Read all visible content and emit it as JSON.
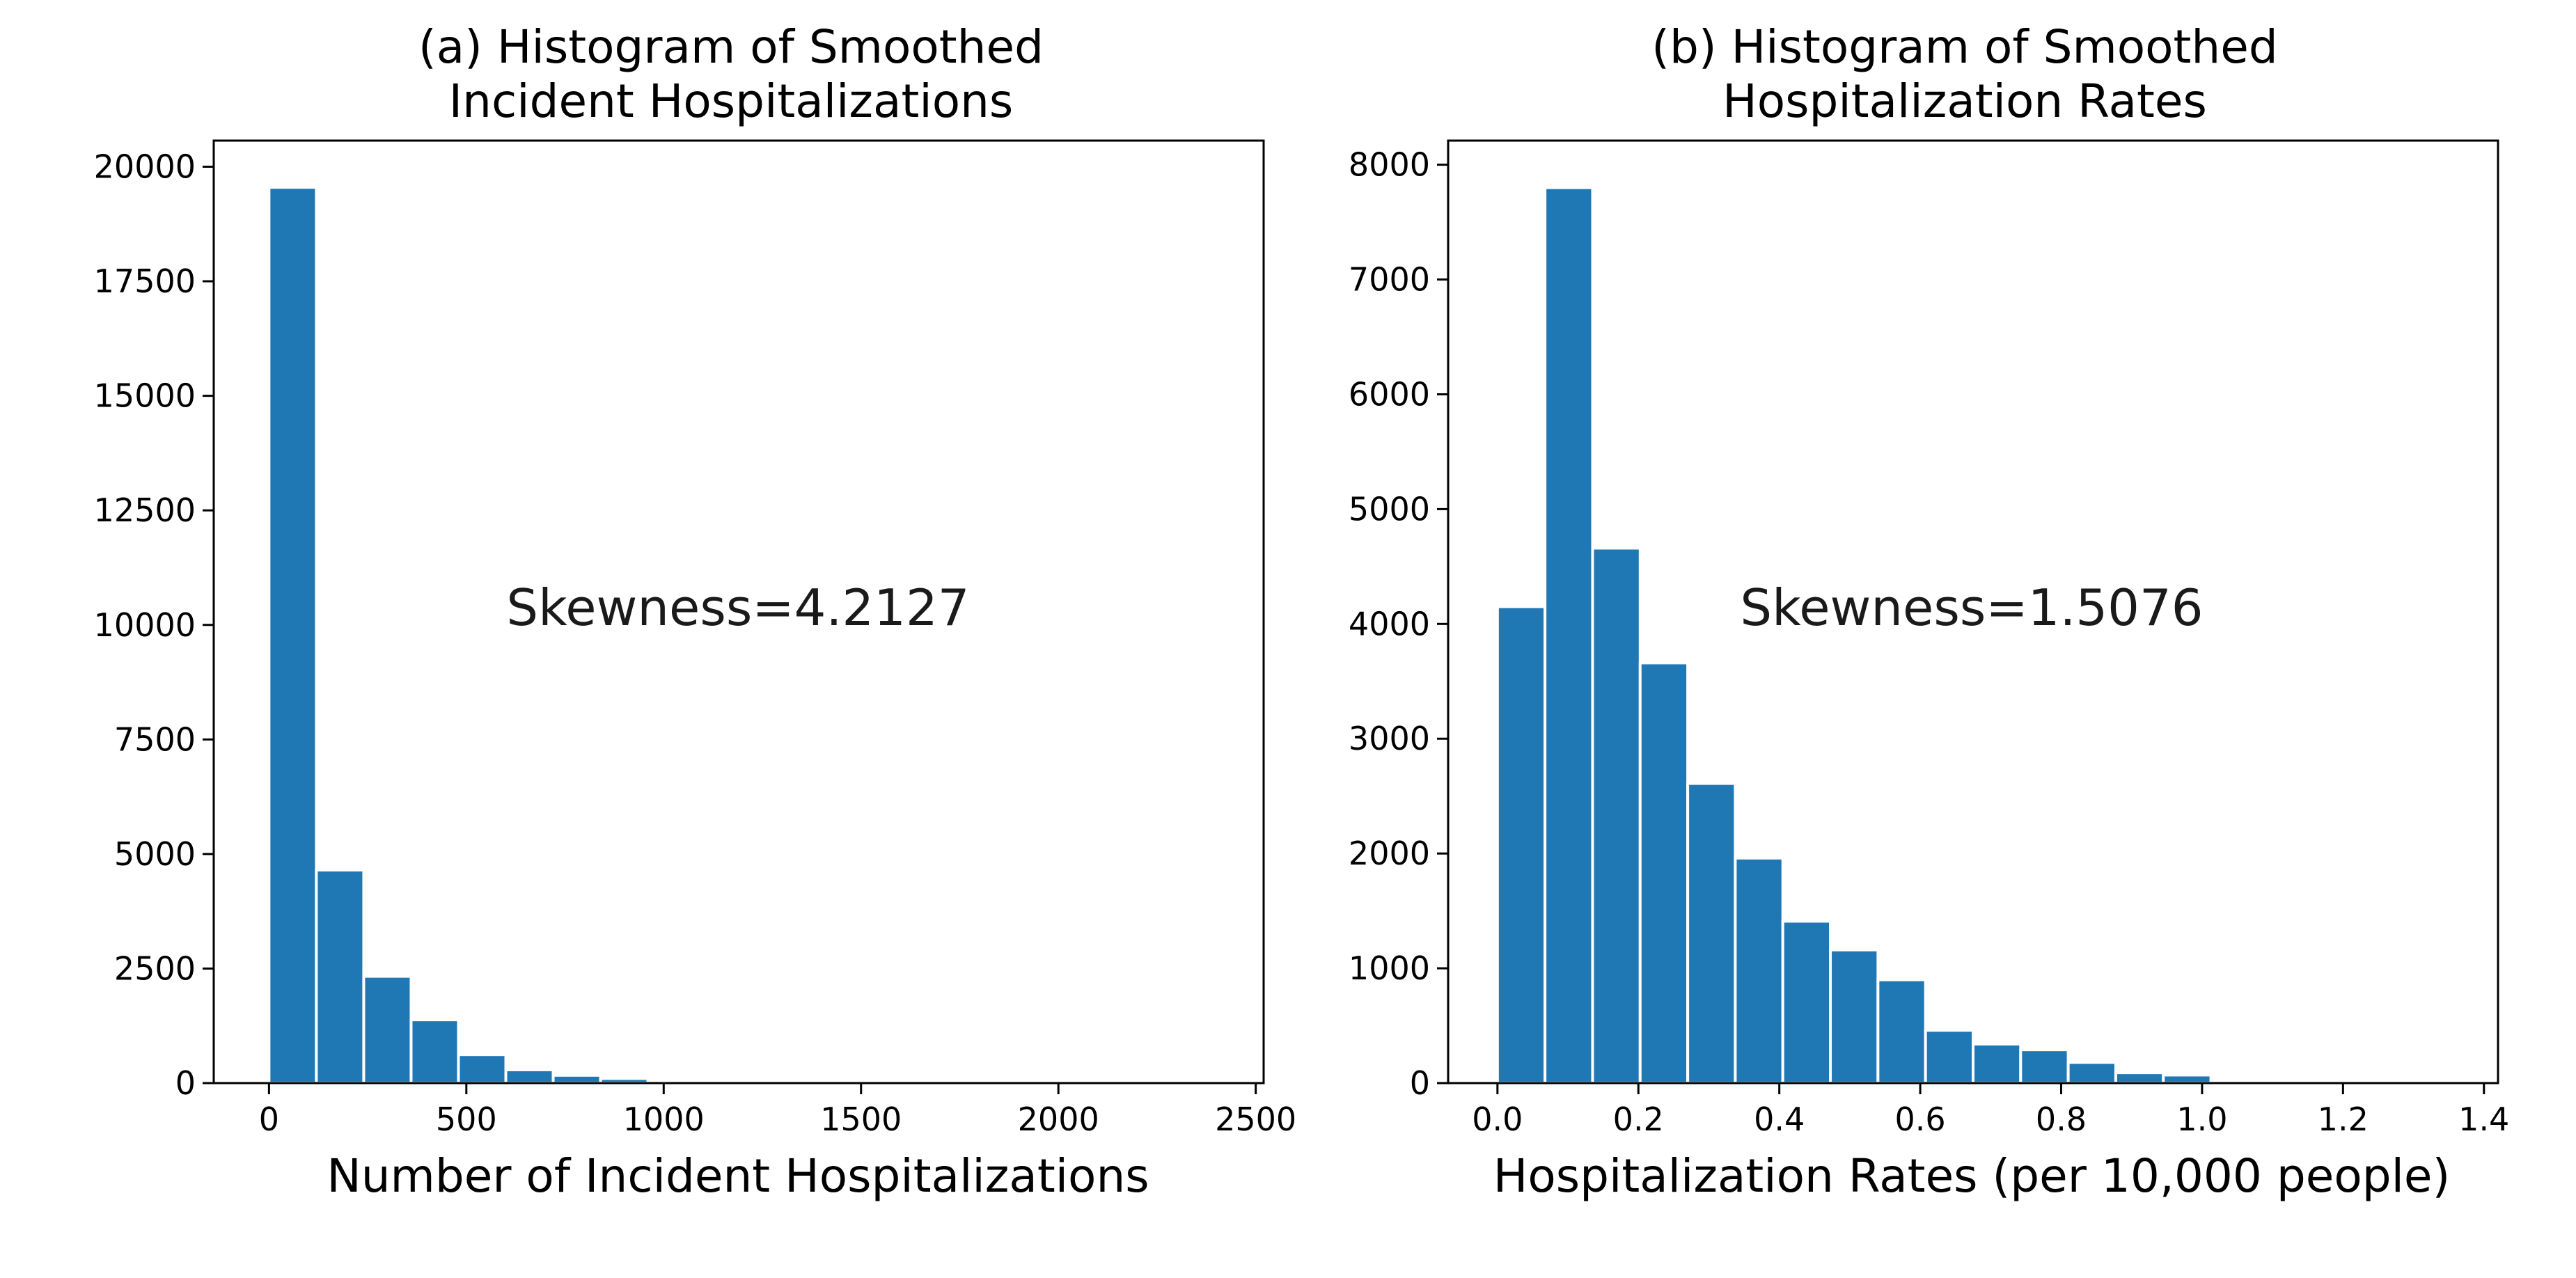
{
  "chart_data": [
    {
      "type": "bar",
      "title_lines": [
        "(a) Histogram of Smoothed",
        "Incident Hospitalizations"
      ],
      "xlabel": "Number of Incident Hospitalizations",
      "ylabel": "",
      "annotation": "Skewness=4.2127",
      "bin_width": 120,
      "bin_start": 0,
      "values": [
        19550,
        4650,
        2330,
        1380,
        620,
        290,
        170,
        100,
        50,
        25,
        15,
        10,
        5,
        4,
        3,
        2,
        2,
        1,
        1,
        1
      ],
      "xlim": [
        -140,
        2520
      ],
      "ylim": [
        0,
        20570
      ],
      "xticks": [
        0,
        500,
        1000,
        1500,
        2000,
        2500
      ],
      "xtick_labels": [
        "0",
        "500",
        "1000",
        "1500",
        "2000",
        "2500"
      ],
      "yticks": [
        0,
        2500,
        5000,
        7500,
        10000,
        12500,
        15000,
        17500,
        20000
      ],
      "ytick_labels": [
        "0",
        "2500",
        "5000",
        "7500",
        "10000",
        "12500",
        "15000",
        "17500",
        "20000"
      ],
      "color": "#1f77b4"
    },
    {
      "type": "bar",
      "title_lines": [
        "(b) Histogram of Smoothed",
        "Hospitalization Rates"
      ],
      "xlabel": "Hospitalization Rates (per 10,000 people)",
      "ylabel": "",
      "annotation": "Skewness=1.5076",
      "bin_width": 0.0675,
      "bin_start": 0,
      "values": [
        4150,
        7800,
        4660,
        3660,
        2610,
        1960,
        1410,
        1160,
        900,
        460,
        340,
        290,
        180,
        90,
        70,
        15,
        10,
        5,
        3,
        2
      ],
      "xlim": [
        -0.07,
        1.42
      ],
      "ylim": [
        0,
        8210
      ],
      "xticks": [
        0.0,
        0.2,
        0.4,
        0.6,
        0.8,
        1.0,
        1.2,
        1.4
      ],
      "xtick_labels": [
        "0.0",
        "0.2",
        "0.4",
        "0.6",
        "0.8",
        "1.0",
        "1.2",
        "1.4"
      ],
      "yticks": [
        0,
        1000,
        2000,
        3000,
        4000,
        5000,
        6000,
        7000,
        8000
      ],
      "ytick_labels": [
        "0",
        "1000",
        "2000",
        "3000",
        "4000",
        "5000",
        "6000",
        "7000",
        "8000"
      ],
      "color": "#1f77b4"
    }
  ]
}
